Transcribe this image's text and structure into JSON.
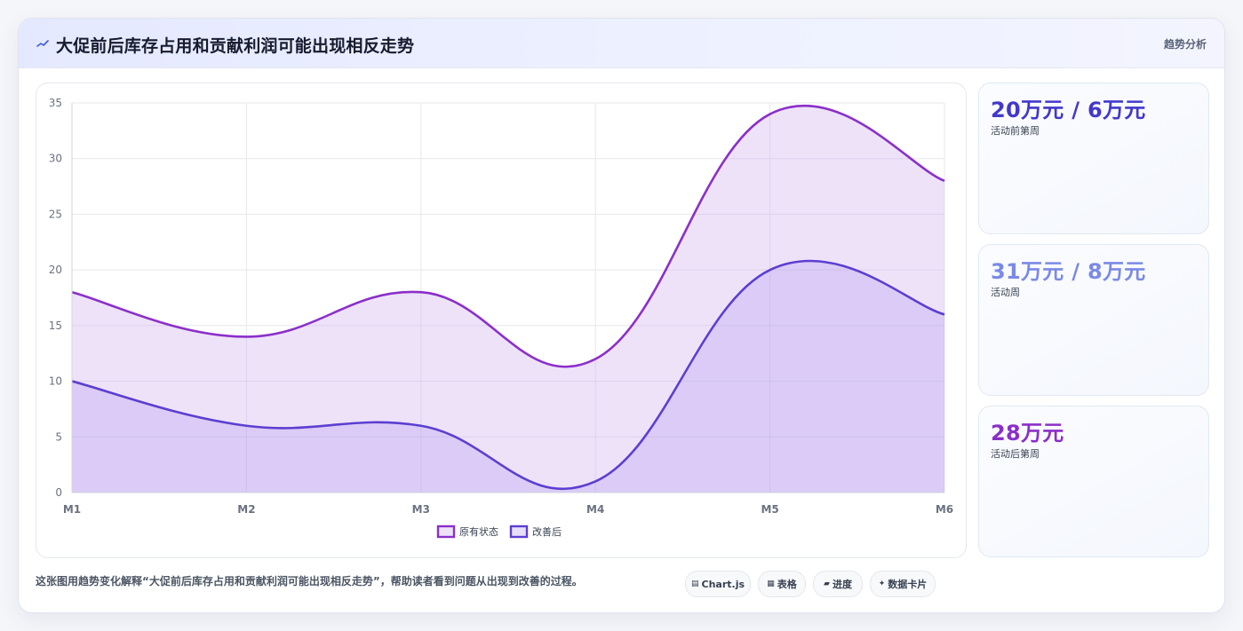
{
  "header": {
    "title": "大促前后库存占用和贡献利润可能出现相反走势",
    "tag": "趋势分析"
  },
  "stats": [
    {
      "value": "20万元 / 6万元",
      "label": "活动前第周",
      "color": "#4338ca"
    },
    {
      "value": "31万元 / 8万元",
      "label": "活动周",
      "color": "#7b8ae6"
    },
    {
      "value": "28万元",
      "label": "活动后第周",
      "color": "#8b2fc9"
    }
  ],
  "footer": {
    "caption": "这张图用趋势变化解释“大促前后库存占用和贡献利润可能出现相反走势”，帮助读者看到问题从出现到改善的过程。",
    "pills": [
      {
        "icon": "chart-icon",
        "glyph": "▤",
        "label": "Chart.js"
      },
      {
        "icon": "table-icon",
        "glyph": "▦",
        "label": "表格"
      },
      {
        "icon": "progress-icon",
        "glyph": "▰",
        "label": "进度"
      },
      {
        "icon": "sparkle-icon",
        "glyph": "✦",
        "label": "数据卡片"
      }
    ]
  },
  "chart_data": {
    "type": "area",
    "categories": [
      "M1",
      "M2",
      "M3",
      "M4",
      "M5",
      "M6"
    ],
    "series": [
      {
        "name": "原有状态",
        "values": [
          18,
          14,
          18,
          12,
          34,
          28
        ],
        "color": "#8b2fc9",
        "fill": "rgba(200,160,236,0.30)"
      },
      {
        "name": "改善后",
        "values": [
          10,
          6,
          6,
          1,
          20,
          16
        ],
        "color": "#5b3fd1",
        "fill": "rgba(176,150,238,0.30)"
      }
    ],
    "ylim": [
      0,
      35
    ],
    "yticks": [
      0,
      5,
      10,
      15,
      20,
      25,
      30,
      35
    ],
    "grid": true,
    "legend_position": "bottom-center"
  }
}
